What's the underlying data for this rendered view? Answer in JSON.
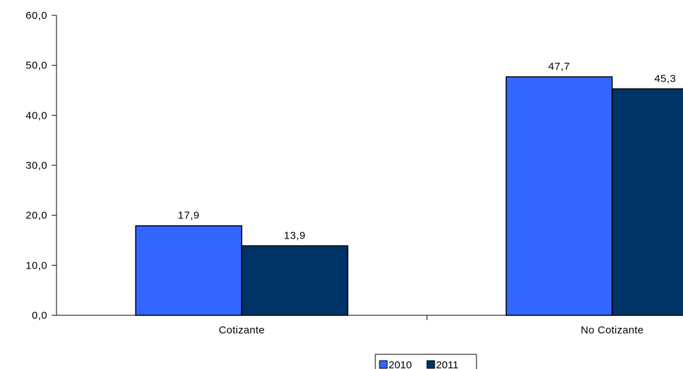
{
  "chart_data": {
    "type": "bar",
    "categories": [
      "Cotizante",
      "No Cotizante"
    ],
    "series": [
      {
        "name": "2010",
        "values": [
          17.9,
          47.7
        ],
        "value_labels": [
          "17,9",
          "47,7"
        ],
        "color": "#3366FF"
      },
      {
        "name": "2011",
        "values": [
          13.9,
          45.3
        ],
        "value_labels": [
          "13,9",
          "45,3"
        ],
        "color": "#003366"
      }
    ],
    "ylim": [
      0,
      60
    ],
    "yticks": [
      0,
      10,
      20,
      30,
      40,
      50,
      60
    ],
    "ytick_labels": [
      "0,0",
      "10,0",
      "20,0",
      "30,0",
      "40,0",
      "50,0",
      "60,0"
    ],
    "grid": false,
    "legend_position": "bottom",
    "title": "",
    "xlabel": "",
    "ylabel": ""
  }
}
